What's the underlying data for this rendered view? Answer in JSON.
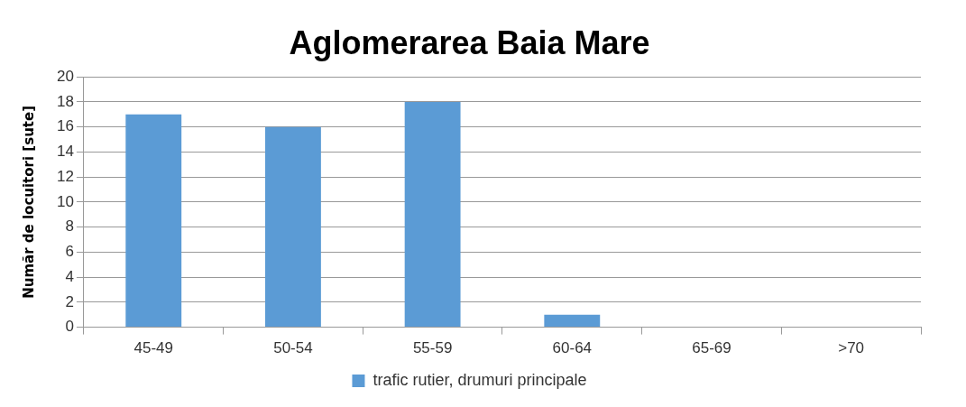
{
  "chart_data": {
    "type": "bar",
    "title": "Aglomerarea Baia Mare",
    "ylabel": "Număr de locuitori [sute]",
    "categories": [
      "45-49",
      "50-54",
      "55-59",
      "60-64",
      "65-69",
      ">70"
    ],
    "series": [
      {
        "name": "trafic rutier, drumuri principale",
        "color": "#5b9bd5",
        "values": [
          17,
          16,
          18,
          1,
          0,
          0
        ]
      }
    ],
    "ylim": [
      0,
      20
    ],
    "yticks": [
      0,
      2,
      4,
      6,
      8,
      10,
      12,
      14,
      16,
      18,
      20
    ],
    "grid": "y",
    "legend": "bottom"
  }
}
